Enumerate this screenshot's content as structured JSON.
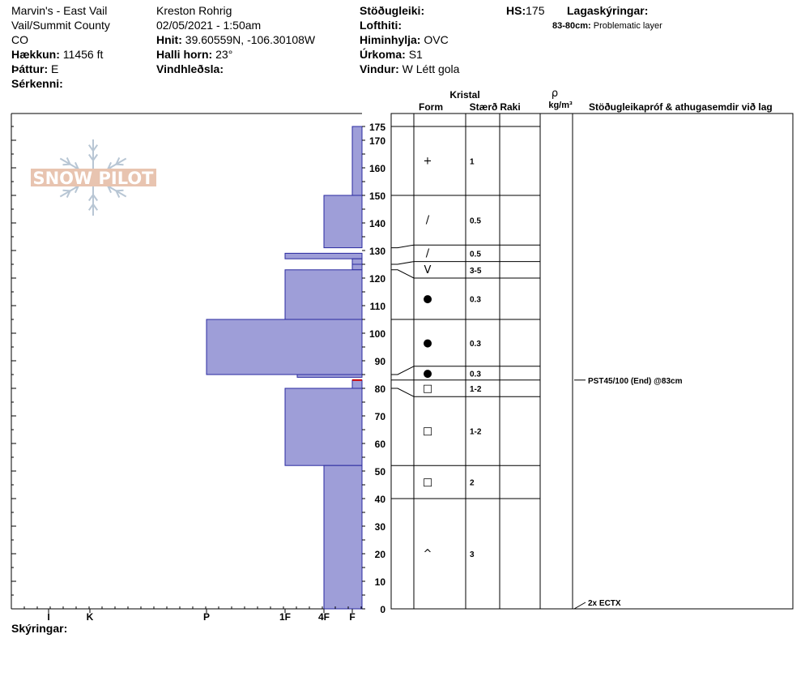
{
  "header": {
    "location_name": "Marvin's - East Vail",
    "region": "Vail/Summit County",
    "state": "CO",
    "elevation_label": "Hækkun:",
    "elevation_value": "11456 ft",
    "aspect_label": "Þáttur:",
    "aspect_value": "E",
    "features_label": "Sérkenni:",
    "observer": "Kreston Rohrig",
    "datetime": "02/05/2021 - 1:50am",
    "coords_label": "Hnit:",
    "coords_value": "39.60559N, -106.30108W",
    "slope_label": "Halli horn:",
    "slope_value": "23°",
    "wind_loading_label": "Vindhleðsla:",
    "stability_label": "Stöðugleiki:",
    "air_temp_label": "Lofthiti:",
    "sky_label": "Himinhylja:",
    "sky_value": "OVC",
    "precip_label": "Úrkoma:",
    "precip_value": "S1",
    "wind_label": "Vindur:",
    "wind_value": "W Létt gola",
    "hs_label": "HS:",
    "hs_value": "175",
    "layer_notes_label": "Lagaskýringar:",
    "problem_layer_range": "83-80cm:",
    "problem_layer_text": "Problematic layer",
    "comments_label": "Skýringar:"
  },
  "logo": {
    "text": "SNOW PILOT",
    "color": "#e8c4b0",
    "flake_color": "#b8c6d4"
  },
  "columns": {
    "crystal": "Kristal",
    "form": "Form",
    "size": "Stærð",
    "moisture": "Raki",
    "density_symbol": "ρ",
    "density_unit": "kg/m³",
    "tests": "Stöðugleikapróf & athugasemdir við lag"
  },
  "chart_data": {
    "type": "snow_profile",
    "total_depth_cm": 175,
    "ylim": [
      0,
      180
    ],
    "y_ticks": [
      0,
      10,
      20,
      30,
      40,
      50,
      60,
      70,
      80,
      90,
      100,
      110,
      120,
      130,
      140,
      150,
      160,
      170,
      175
    ],
    "hardness_ticks": [
      "I",
      "K",
      "P",
      "1F",
      "4F",
      "F"
    ],
    "hardness_fill": "#9e9ed8",
    "hardness_stroke": "#2a2aa0",
    "marker_color": "#cc0000",
    "hardness_profile": [
      {
        "bottom": 150,
        "top": 175,
        "hardness": "F"
      },
      {
        "bottom": 131,
        "top": 150,
        "hardness": "4F"
      },
      {
        "bottom": 127,
        "top": 129,
        "hardness": "1F"
      },
      {
        "bottom": 125,
        "top": 127,
        "hardness": "F"
      },
      {
        "bottom": 123,
        "top": 125,
        "hardness": "F"
      },
      {
        "bottom": 105,
        "top": 123,
        "hardness": "1F"
      },
      {
        "bottom": 85,
        "top": 105,
        "hardness": "P"
      },
      {
        "bottom": 84,
        "top": 85,
        "hardness": "1F+"
      },
      {
        "bottom": 80,
        "top": 83,
        "hardness": "F"
      },
      {
        "bottom": 52,
        "top": 80,
        "hardness": "1F"
      },
      {
        "bottom": 0,
        "top": 52,
        "hardness": "4F"
      }
    ],
    "layers": [
      {
        "top": 175,
        "bottom": 150,
        "form": "+",
        "size": "1"
      },
      {
        "top": 150,
        "bottom": 132,
        "form": "/",
        "size": "0.5"
      },
      {
        "top": 132,
        "bottom": 126,
        "form": "/",
        "size": "0.5"
      },
      {
        "top": 126,
        "bottom": 120,
        "form": "V",
        "size": "3-5"
      },
      {
        "top": 120,
        "bottom": 105,
        "form": "●",
        "size": "0.3"
      },
      {
        "top": 105,
        "bottom": 88,
        "form": "●",
        "size": "0.3"
      },
      {
        "top": 88,
        "bottom": 83,
        "form": "●",
        "size": "0.3"
      },
      {
        "top": 83,
        "bottom": 77,
        "form": "□",
        "size": "1-2"
      },
      {
        "top": 77,
        "bottom": 52,
        "form": "□",
        "size": "1-2"
      },
      {
        "top": 52,
        "bottom": 40,
        "form": "□",
        "size": "2"
      },
      {
        "top": 40,
        "bottom": 0,
        "form": "^",
        "size": "3"
      }
    ],
    "tests": [
      {
        "depth": 83,
        "text": "PST45/100 (End) @83cm"
      },
      {
        "depth": 0,
        "text": "2x ECTX"
      }
    ]
  }
}
